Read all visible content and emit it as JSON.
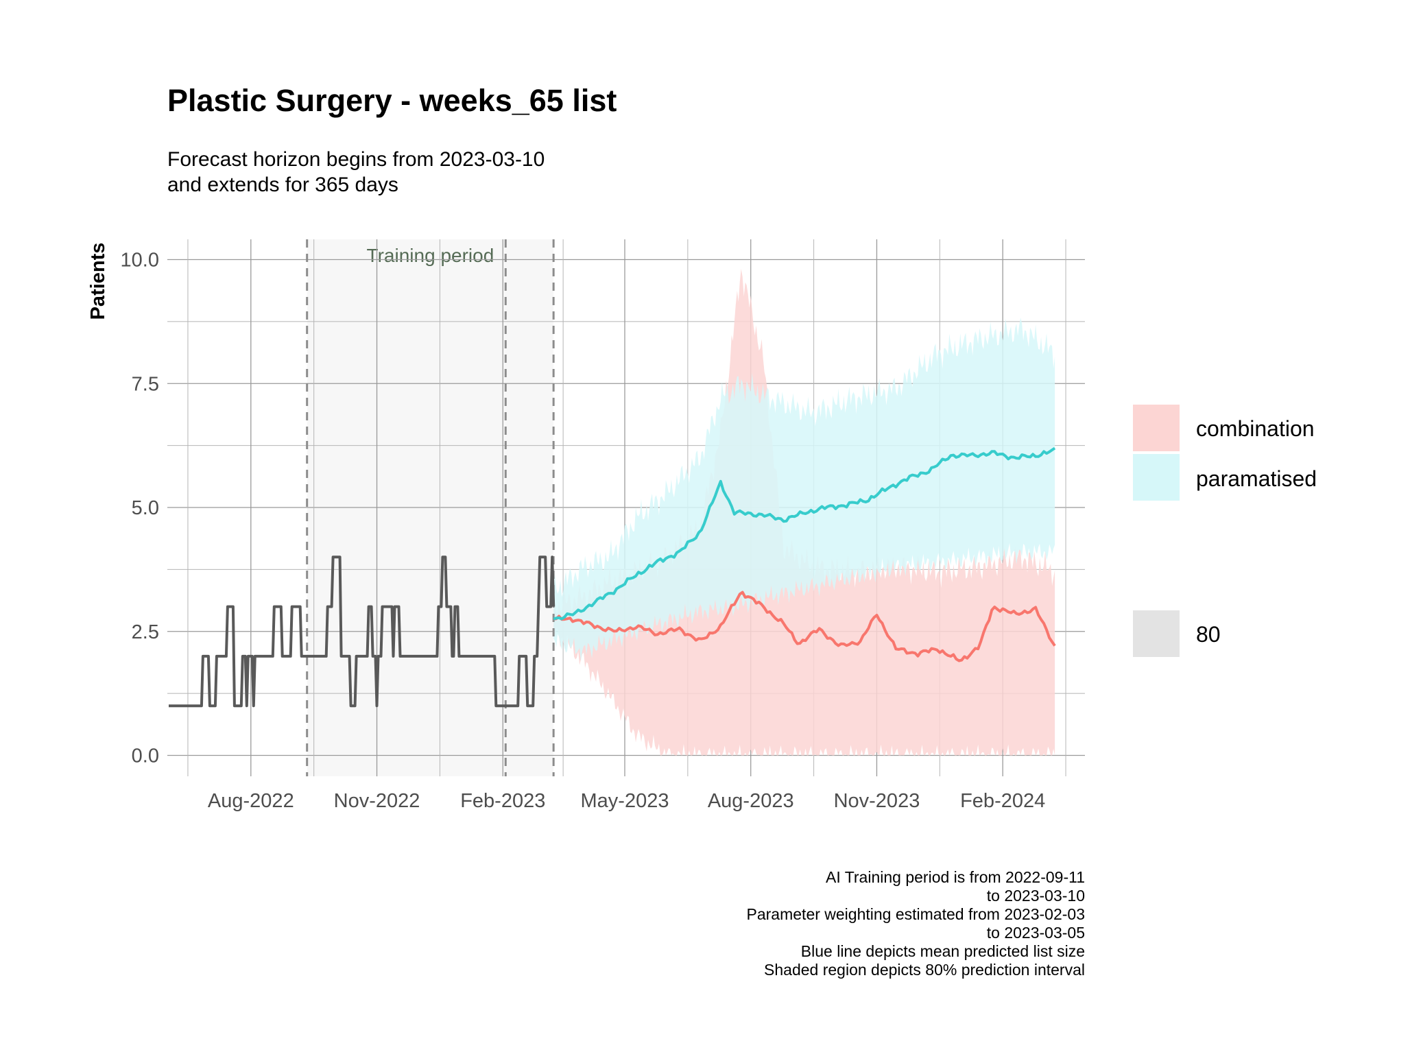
{
  "chart_data": {
    "type": "line",
    "title": "Plastic Surgery - weeks_65 list",
    "subtitle": [
      "Forecast horizon begins from 2023-03-10",
      "and extends for 365 days"
    ],
    "xlabel": "",
    "ylabel": "Patients",
    "x_type": "date",
    "xlim": [
      "2022-06-01",
      "2024-04-01"
    ],
    "ylim": [
      0,
      10
    ],
    "x_ticks": [
      {
        "date": "2022-08-01",
        "label": "Aug-2022"
      },
      {
        "date": "2022-11-01",
        "label": "Nov-2022"
      },
      {
        "date": "2023-02-01",
        "label": "Feb-2023"
      },
      {
        "date": "2023-05-01",
        "label": "May-2023"
      },
      {
        "date": "2023-08-01",
        "label": "Aug-2023"
      },
      {
        "date": "2023-11-01",
        "label": "Nov-2023"
      },
      {
        "date": "2024-02-01",
        "label": "Feb-2024"
      }
    ],
    "y_ticks": [
      {
        "value": 0,
        "label": "0.0"
      },
      {
        "value": 2.5,
        "label": "2.5"
      },
      {
        "value": 5,
        "label": "5.0"
      },
      {
        "value": 7.5,
        "label": "7.5"
      },
      {
        "value": 10,
        "label": "10.0"
      }
    ],
    "grid": true,
    "training_period": {
      "start": "2022-09-11",
      "end": "2023-03-10",
      "label": "Training period"
    },
    "reference_lines": [
      "2022-09-11",
      "2023-02-03",
      "2023-03-10"
    ],
    "observed": {
      "color": "#595959",
      "points": [
        [
          "2022-06-02",
          1
        ],
        [
          "2022-06-26",
          1
        ],
        [
          "2022-06-27",
          2
        ],
        [
          "2022-07-01",
          2
        ],
        [
          "2022-07-02",
          1
        ],
        [
          "2022-07-06",
          1
        ],
        [
          "2022-07-07",
          2
        ],
        [
          "2022-07-14",
          2
        ],
        [
          "2022-07-15",
          3
        ],
        [
          "2022-07-19",
          3
        ],
        [
          "2022-07-20",
          1
        ],
        [
          "2022-07-25",
          1
        ],
        [
          "2022-07-26",
          2
        ],
        [
          "2022-07-28",
          2
        ],
        [
          "2022-07-29",
          1
        ],
        [
          "2022-07-30",
          2
        ],
        [
          "2022-08-02",
          2
        ],
        [
          "2022-08-03",
          1
        ],
        [
          "2022-08-04",
          2
        ],
        [
          "2022-08-17",
          2
        ],
        [
          "2022-08-18",
          3
        ],
        [
          "2022-08-23",
          3
        ],
        [
          "2022-08-24",
          2
        ],
        [
          "2022-08-30",
          2
        ],
        [
          "2022-08-31",
          3
        ],
        [
          "2022-09-06",
          3
        ],
        [
          "2022-09-07",
          2
        ],
        [
          "2022-09-25",
          2
        ],
        [
          "2022-09-26",
          3
        ],
        [
          "2022-09-29",
          3
        ],
        [
          "2022-09-30",
          4
        ],
        [
          "2022-10-05",
          4
        ],
        [
          "2022-10-06",
          2
        ],
        [
          "2022-10-12",
          2
        ],
        [
          "2022-10-13",
          1
        ],
        [
          "2022-10-16",
          1
        ],
        [
          "2022-10-17",
          2
        ],
        [
          "2022-10-25",
          2
        ],
        [
          "2022-10-26",
          3
        ],
        [
          "2022-10-28",
          3
        ],
        [
          "2022-10-29",
          2
        ],
        [
          "2022-10-31",
          2
        ],
        [
          "2022-11-01",
          1
        ],
        [
          "2022-11-02",
          2
        ],
        [
          "2022-11-04",
          2
        ],
        [
          "2022-11-05",
          3
        ],
        [
          "2022-11-12",
          3
        ],
        [
          "2022-11-13",
          2
        ],
        [
          "2022-11-14",
          3
        ],
        [
          "2022-11-17",
          3
        ],
        [
          "2022-11-18",
          2
        ],
        [
          "2022-12-15",
          2
        ],
        [
          "2022-12-16",
          3
        ],
        [
          "2022-12-18",
          3
        ],
        [
          "2022-12-19",
          4
        ],
        [
          "2022-12-21",
          4
        ],
        [
          "2022-12-22",
          3
        ],
        [
          "2022-12-25",
          3
        ],
        [
          "2022-12-26",
          2
        ],
        [
          "2022-12-27",
          2
        ],
        [
          "2022-12-28",
          3
        ],
        [
          "2022-12-30",
          3
        ],
        [
          "2022-12-31",
          2
        ],
        [
          "2023-01-26",
          2
        ],
        [
          "2023-01-27",
          1
        ],
        [
          "2023-02-12",
          1
        ],
        [
          "2023-02-13",
          2
        ],
        [
          "2023-02-18",
          2
        ],
        [
          "2023-02-19",
          1
        ],
        [
          "2023-02-23",
          1
        ],
        [
          "2023-02-24",
          2
        ],
        [
          "2023-02-26",
          2
        ],
        [
          "2023-02-27",
          3
        ],
        [
          "2023-02-28",
          4
        ],
        [
          "2023-03-04",
          4
        ],
        [
          "2023-03-05",
          3
        ],
        [
          "2023-03-08",
          3
        ],
        [
          "2023-03-09",
          4
        ],
        [
          "2023-03-10",
          3
        ]
      ]
    },
    "series": [
      {
        "name": "combination",
        "color": "#f8766d",
        "fill": "#fcd5d3",
        "mean": [
          [
            "2023-03-10",
            2.75
          ],
          [
            "2023-03-25",
            2.75
          ],
          [
            "2023-04-10",
            2.6
          ],
          [
            "2023-04-25",
            2.5
          ],
          [
            "2023-05-10",
            2.6
          ],
          [
            "2023-05-25",
            2.45
          ],
          [
            "2023-06-10",
            2.55
          ],
          [
            "2023-06-25",
            2.3
          ],
          [
            "2023-07-10",
            2.6
          ],
          [
            "2023-07-25",
            3.3
          ],
          [
            "2023-08-10",
            3.0
          ],
          [
            "2023-08-25",
            2.65
          ],
          [
            "2023-09-05",
            2.25
          ],
          [
            "2023-09-20",
            2.55
          ],
          [
            "2023-10-05",
            2.2
          ],
          [
            "2023-10-20",
            2.3
          ],
          [
            "2023-11-01",
            2.85
          ],
          [
            "2023-11-15",
            2.15
          ],
          [
            "2023-12-01",
            2.05
          ],
          [
            "2023-12-15",
            2.15
          ],
          [
            "2024-01-01",
            1.9
          ],
          [
            "2024-01-15",
            2.2
          ],
          [
            "2024-01-25",
            3.0
          ],
          [
            "2024-02-10",
            2.85
          ],
          [
            "2024-02-25",
            2.95
          ],
          [
            "2024-03-10",
            2.2
          ]
        ],
        "lower": [
          [
            "2023-03-10",
            2.5
          ],
          [
            "2023-04-01",
            1.9
          ],
          [
            "2023-04-20",
            1.2
          ],
          [
            "2023-05-10",
            0.4
          ],
          [
            "2023-06-01",
            0
          ],
          [
            "2024-03-10",
            0
          ]
        ],
        "upper": [
          [
            "2023-03-10",
            3.0
          ],
          [
            "2023-04-01",
            3.2
          ],
          [
            "2023-04-20",
            3.5
          ],
          [
            "2023-05-10",
            3.7
          ],
          [
            "2023-06-01",
            4.0
          ],
          [
            "2023-06-25",
            4.6
          ],
          [
            "2023-07-10",
            6.5
          ],
          [
            "2023-07-25",
            9.8
          ],
          [
            "2023-08-10",
            8.0
          ],
          [
            "2023-08-25",
            4.2
          ],
          [
            "2023-09-15",
            3.8
          ],
          [
            "2023-10-15",
            3.7
          ],
          [
            "2023-11-15",
            3.8
          ],
          [
            "2023-12-15",
            3.7
          ],
          [
            "2024-01-15",
            3.8
          ],
          [
            "2024-02-15",
            4.0
          ],
          [
            "2024-03-10",
            3.7
          ]
        ]
      },
      {
        "name": "paramatised",
        "color": "#37cccc",
        "fill": "#d6f7f9",
        "mean": [
          [
            "2023-03-10",
            2.75
          ],
          [
            "2023-03-25",
            2.85
          ],
          [
            "2023-04-10",
            3.1
          ],
          [
            "2023-04-25",
            3.35
          ],
          [
            "2023-05-10",
            3.65
          ],
          [
            "2023-05-25",
            3.9
          ],
          [
            "2023-06-10",
            4.1
          ],
          [
            "2023-06-25",
            4.5
          ],
          [
            "2023-07-10",
            5.5
          ],
          [
            "2023-07-20",
            4.9
          ],
          [
            "2023-08-10",
            4.85
          ],
          [
            "2023-08-25",
            4.75
          ],
          [
            "2023-09-10",
            4.9
          ],
          [
            "2023-09-25",
            5.0
          ],
          [
            "2023-10-10",
            5.05
          ],
          [
            "2023-10-25",
            5.15
          ],
          [
            "2023-11-10",
            5.4
          ],
          [
            "2023-11-25",
            5.6
          ],
          [
            "2023-12-10",
            5.75
          ],
          [
            "2023-12-25",
            6.05
          ],
          [
            "2024-01-10",
            6.05
          ],
          [
            "2024-01-25",
            6.1
          ],
          [
            "2024-02-10",
            6.0
          ],
          [
            "2024-02-25",
            6.05
          ],
          [
            "2024-03-10",
            6.15
          ]
        ],
        "lower": [
          [
            "2023-03-10",
            2.3
          ],
          [
            "2023-04-01",
            2.1
          ],
          [
            "2023-04-20",
            2.3
          ],
          [
            "2023-05-10",
            2.5
          ],
          [
            "2023-06-01",
            2.7
          ],
          [
            "2023-06-25",
            2.9
          ],
          [
            "2023-07-20",
            3.0
          ],
          [
            "2023-08-15",
            3.2
          ],
          [
            "2023-09-15",
            3.4
          ],
          [
            "2023-10-15",
            3.6
          ],
          [
            "2023-11-15",
            3.8
          ],
          [
            "2023-12-15",
            3.9
          ],
          [
            "2024-01-15",
            4.0
          ],
          [
            "2024-02-15",
            4.1
          ],
          [
            "2024-03-10",
            4.1
          ]
        ],
        "upper": [
          [
            "2023-03-10",
            3.3
          ],
          [
            "2023-04-01",
            3.8
          ],
          [
            "2023-04-20",
            4.0
          ],
          [
            "2023-05-10",
            4.8
          ],
          [
            "2023-06-01",
            5.3
          ],
          [
            "2023-06-25",
            6.0
          ],
          [
            "2023-07-10",
            7.2
          ],
          [
            "2023-07-25",
            7.5
          ],
          [
            "2023-08-15",
            7.2
          ],
          [
            "2023-09-15",
            6.9
          ],
          [
            "2023-10-15",
            7.2
          ],
          [
            "2023-11-15",
            7.4
          ],
          [
            "2023-12-15",
            8.1
          ],
          [
            "2024-01-15",
            8.4
          ],
          [
            "2024-02-15",
            8.6
          ],
          [
            "2024-03-10",
            8.1
          ]
        ]
      }
    ],
    "legend": {
      "position": "right",
      "series_entries": [
        "combination",
        "paramatised"
      ],
      "interval_entry": {
        "label": "80",
        "color": "#e3e3e3"
      }
    },
    "caption": [
      "AI Training period is from 2022-09-11",
      "to 2023-03-10",
      "Parameter weighting estimated from 2023-02-03",
      "to 2023-03-05",
      "Blue line depicts mean predicted list size",
      "Shaded region depicts 80% prediction interval"
    ]
  }
}
